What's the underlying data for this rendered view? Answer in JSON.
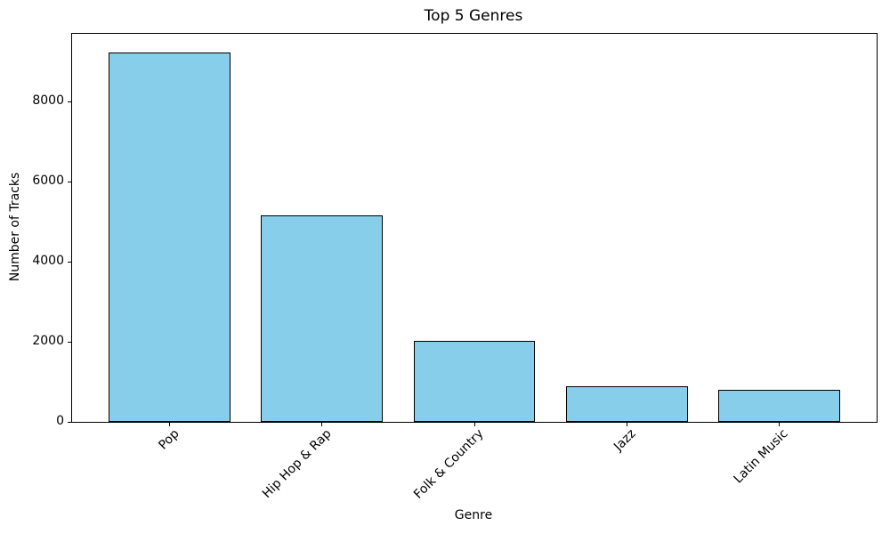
{
  "chart_data": {
    "type": "bar",
    "title": "Top 5 Genres",
    "xlabel": "Genre",
    "ylabel": "Number of Tracks",
    "categories": [
      "Pop",
      "Hip Hop & Rap",
      "Folk & Country",
      "Jazz",
      "Latin Music"
    ],
    "values": [
      9240,
      5160,
      2020,
      890,
      800
    ],
    "yticks": [
      0,
      2000,
      4000,
      6000,
      8000
    ],
    "ylim": [
      0,
      9700
    ],
    "bar_color": "#87CEEB",
    "bar_edge_color": "#000000",
    "x_tick_rotation_deg": 45,
    "grid": false,
    "legend": "none",
    "background_color": "#FFFFFF"
  }
}
